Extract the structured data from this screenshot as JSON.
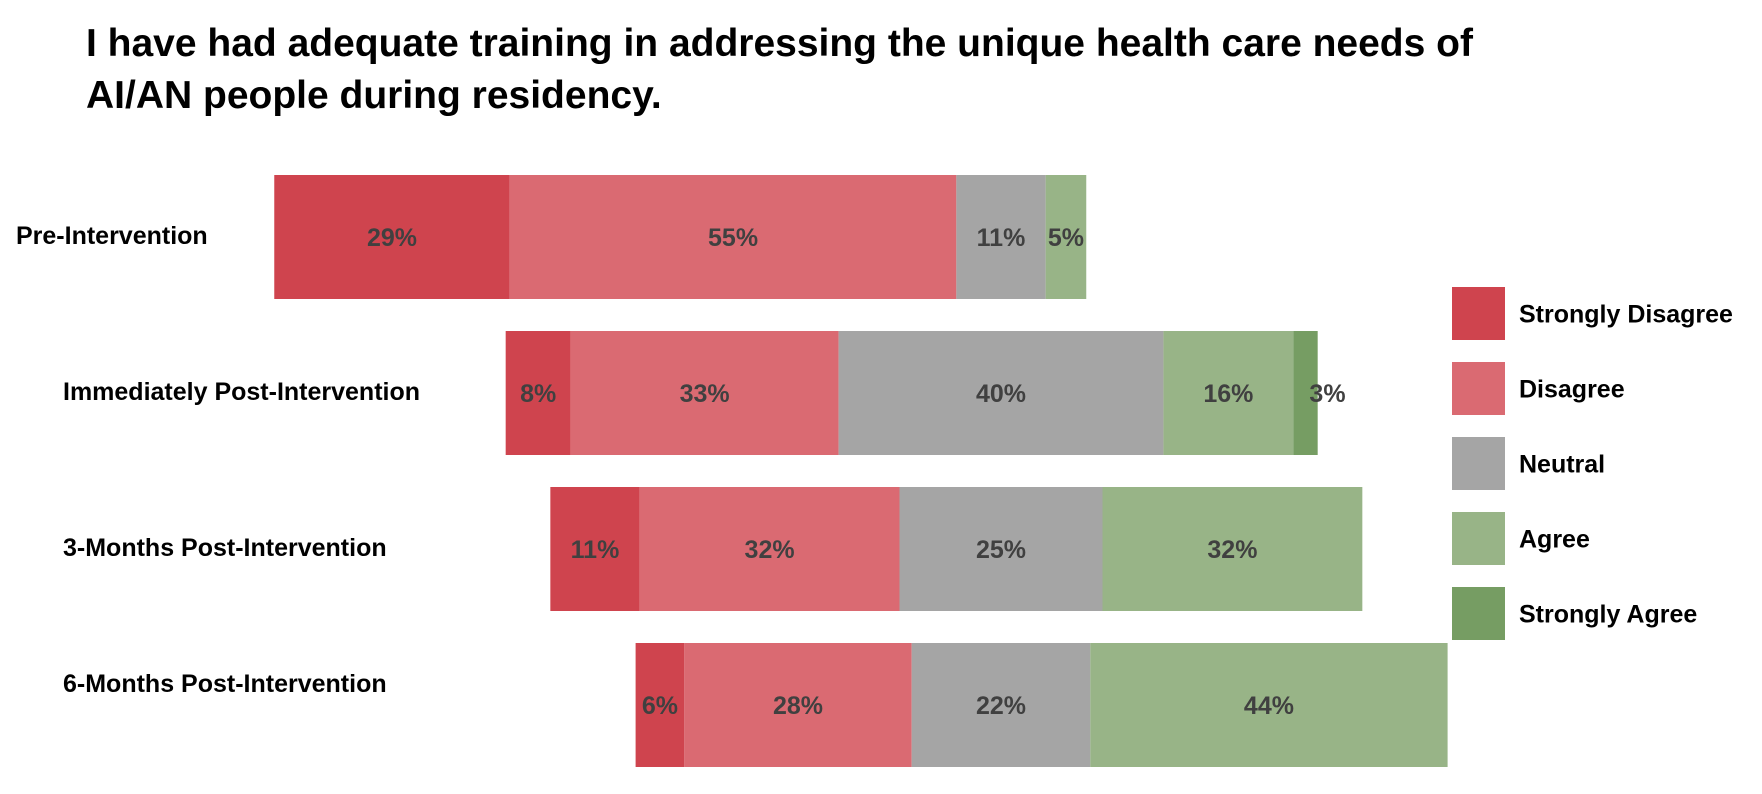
{
  "chart_data": {
    "type": "bar",
    "orientation": "horizontal",
    "stacked": true,
    "diverging": true,
    "title": "I have had adequate training in addressing the unique health care needs of AI/AN people during residency.",
    "categories": [
      "Pre-Intervention",
      "Immediately Post-Intervention",
      "3-Months Post-Intervention",
      "6-Months Post-Intervention"
    ],
    "series": [
      {
        "name": "Strongly Disagree",
        "color": "#CF444E",
        "values": [
          29,
          8,
          11,
          6
        ],
        "labels": [
          "29%",
          "8%",
          "11%",
          "6%"
        ]
      },
      {
        "name": "Disagree",
        "color": "#DA6A72",
        "values": [
          55,
          33,
          32,
          28
        ],
        "labels": [
          "55%",
          "33%",
          "32%",
          "28%"
        ]
      },
      {
        "name": "Neutral",
        "color": "#A5A5A5",
        "values": [
          11,
          40,
          25,
          22
        ],
        "labels": [
          "11%",
          "40%",
          "25%",
          "22%"
        ]
      },
      {
        "name": "Agree",
        "color": "#98B487",
        "values": [
          5,
          16,
          32,
          44
        ],
        "labels": [
          "5%",
          "16%",
          "32%",
          "44%"
        ]
      },
      {
        "name": "Strongly Agree",
        "color": "#769D63",
        "values": [
          0,
          3,
          0,
          0
        ],
        "labels": [
          "",
          "3%",
          "",
          ""
        ]
      }
    ],
    "legend": "right",
    "grid": false,
    "axes_visible": false
  }
}
